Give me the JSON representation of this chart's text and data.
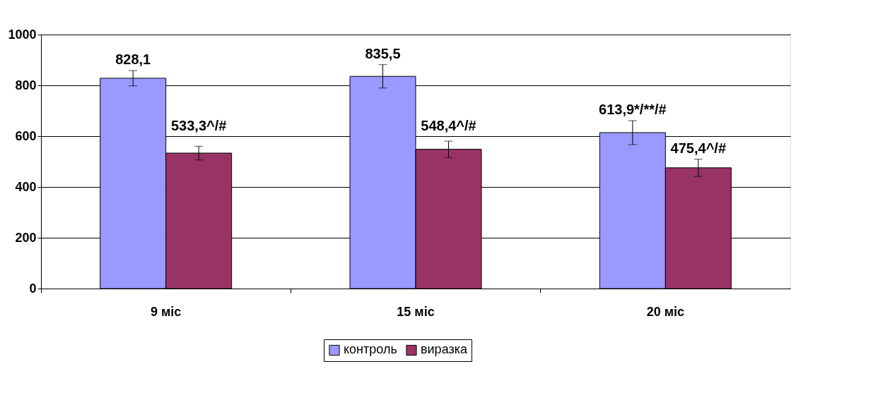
{
  "chart_data": {
    "type": "bar",
    "categories": [
      "9 міс",
      "15 міс",
      "20 міс"
    ],
    "series": [
      {
        "name": "контроль",
        "color": "#9999ff",
        "values": [
          828.1,
          835.5,
          613.9
        ],
        "errors": [
          30,
          46,
          47
        ],
        "value_labels": [
          "828,1",
          "835,5",
          "613,9*/**/#"
        ]
      },
      {
        "name": "виразка",
        "color": "#993366",
        "values": [
          533.3,
          548.4,
          475.4
        ],
        "errors": [
          27,
          32,
          34
        ],
        "value_labels": [
          "533,3^/#",
          "548,4^/#",
          "475,4^/#"
        ]
      }
    ],
    "ylim": [
      0,
      1000
    ],
    "yticks": [
      0,
      200,
      400,
      600,
      800,
      1000
    ],
    "grid": "y",
    "legend": "bottom"
  }
}
